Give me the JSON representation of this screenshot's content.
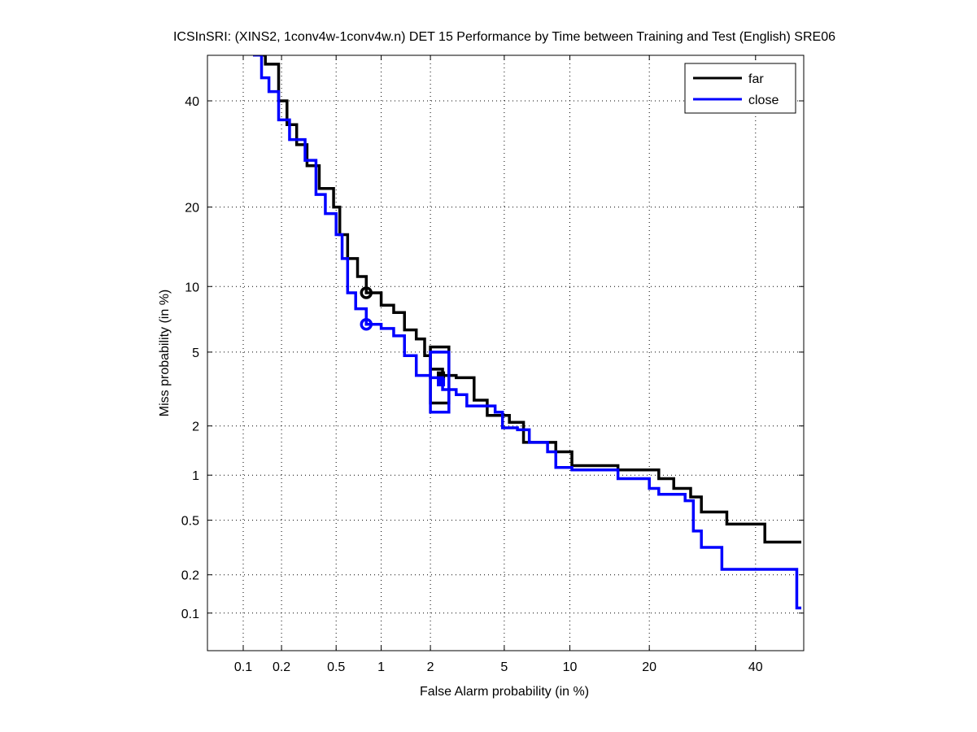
{
  "chart_data": {
    "type": "line",
    "scale": "normal-deviate (DET)",
    "title": "ICSInSRI: (XINS2, 1conv4w-1conv4w.n) DET 15 Performance by Time between Training and Test (English) SRE06",
    "xlabel": "False Alarm probability (in %)",
    "ylabel": "Miss probability (in %)",
    "xlim": [
      0.05,
      50
    ],
    "ylim": [
      0.05,
      50
    ],
    "xticks": [
      0.1,
      0.2,
      0.5,
      1,
      2,
      5,
      10,
      20,
      40
    ],
    "xtick_labels": [
      "0.1",
      "0.2",
      "0.5",
      "1",
      "2",
      "5",
      "10",
      "20",
      "40"
    ],
    "yticks": [
      0.1,
      0.2,
      0.5,
      1,
      2,
      5,
      10,
      20,
      40
    ],
    "ytick_labels": [
      "0.1",
      "0.2",
      "0.5",
      "1",
      "2",
      "5",
      "10",
      "20",
      "40"
    ],
    "grid": true,
    "legend_position": "top-right",
    "series": [
      {
        "name": "far",
        "color": "#000000",
        "x": [
          0.12,
          0.15,
          0.19,
          0.22,
          0.26,
          0.31,
          0.38,
          0.48,
          0.53,
          0.6,
          0.7,
          0.8,
          1.0,
          1.2,
          1.4,
          1.65,
          1.85,
          2.0,
          2.35,
          2.8,
          3.5,
          4.1,
          5.3,
          6.2,
          8.7,
          10.2,
          15.5,
          21.5,
          24,
          27,
          29,
          34,
          41,
          42,
          50
        ],
        "y": [
          50,
          48,
          40,
          35,
          31,
          27,
          23,
          20,
          16,
          13,
          11,
          9.4,
          8.3,
          7.7,
          6.4,
          5.8,
          4.8,
          4.1,
          3.8,
          3.7,
          2.8,
          2.3,
          2.1,
          1.6,
          1.4,
          1.15,
          1.08,
          0.95,
          0.82,
          0.72,
          0.57,
          0.47,
          0.47,
          0.35,
          0.35
        ],
        "marker_circle": [
          0.8,
          9.4
        ],
        "confidence_box": {
          "x": [
            2.0,
            2.55
          ],
          "y": [
            2.7,
            5.3
          ],
          "point": [
            2.3,
            3.8
          ]
        }
      },
      {
        "name": "close",
        "color": "#0000ff",
        "x": [
          0.12,
          0.14,
          0.16,
          0.19,
          0.23,
          0.3,
          0.36,
          0.42,
          0.5,
          0.55,
          0.6,
          0.68,
          0.8,
          1.0,
          1.2,
          1.4,
          1.65,
          2.0,
          2.35,
          2.8,
          3.2,
          4.5,
          4.9,
          5.8,
          6.6,
          8,
          8.7,
          10.2,
          15.5,
          20,
          21.5,
          26,
          27.5,
          29,
          33,
          48,
          49,
          50
        ],
        "y": [
          50,
          45,
          42,
          36,
          32,
          28,
          22,
          19,
          16,
          13,
          9.4,
          8,
          6.8,
          6.5,
          6,
          4.8,
          3.8,
          3.7,
          3.2,
          3.0,
          2.6,
          2.4,
          1.95,
          1.9,
          1.6,
          1.4,
          1.12,
          1.08,
          0.95,
          0.82,
          0.75,
          0.68,
          0.42,
          0.32,
          0.22,
          0.22,
          0.11,
          0.11
        ],
        "marker_circle": [
          0.8,
          6.8
        ],
        "confidence_box": {
          "x": [
            2.0,
            2.55
          ],
          "y": [
            2.4,
            5.0
          ],
          "point": [
            2.3,
            3.5
          ]
        }
      }
    ]
  }
}
